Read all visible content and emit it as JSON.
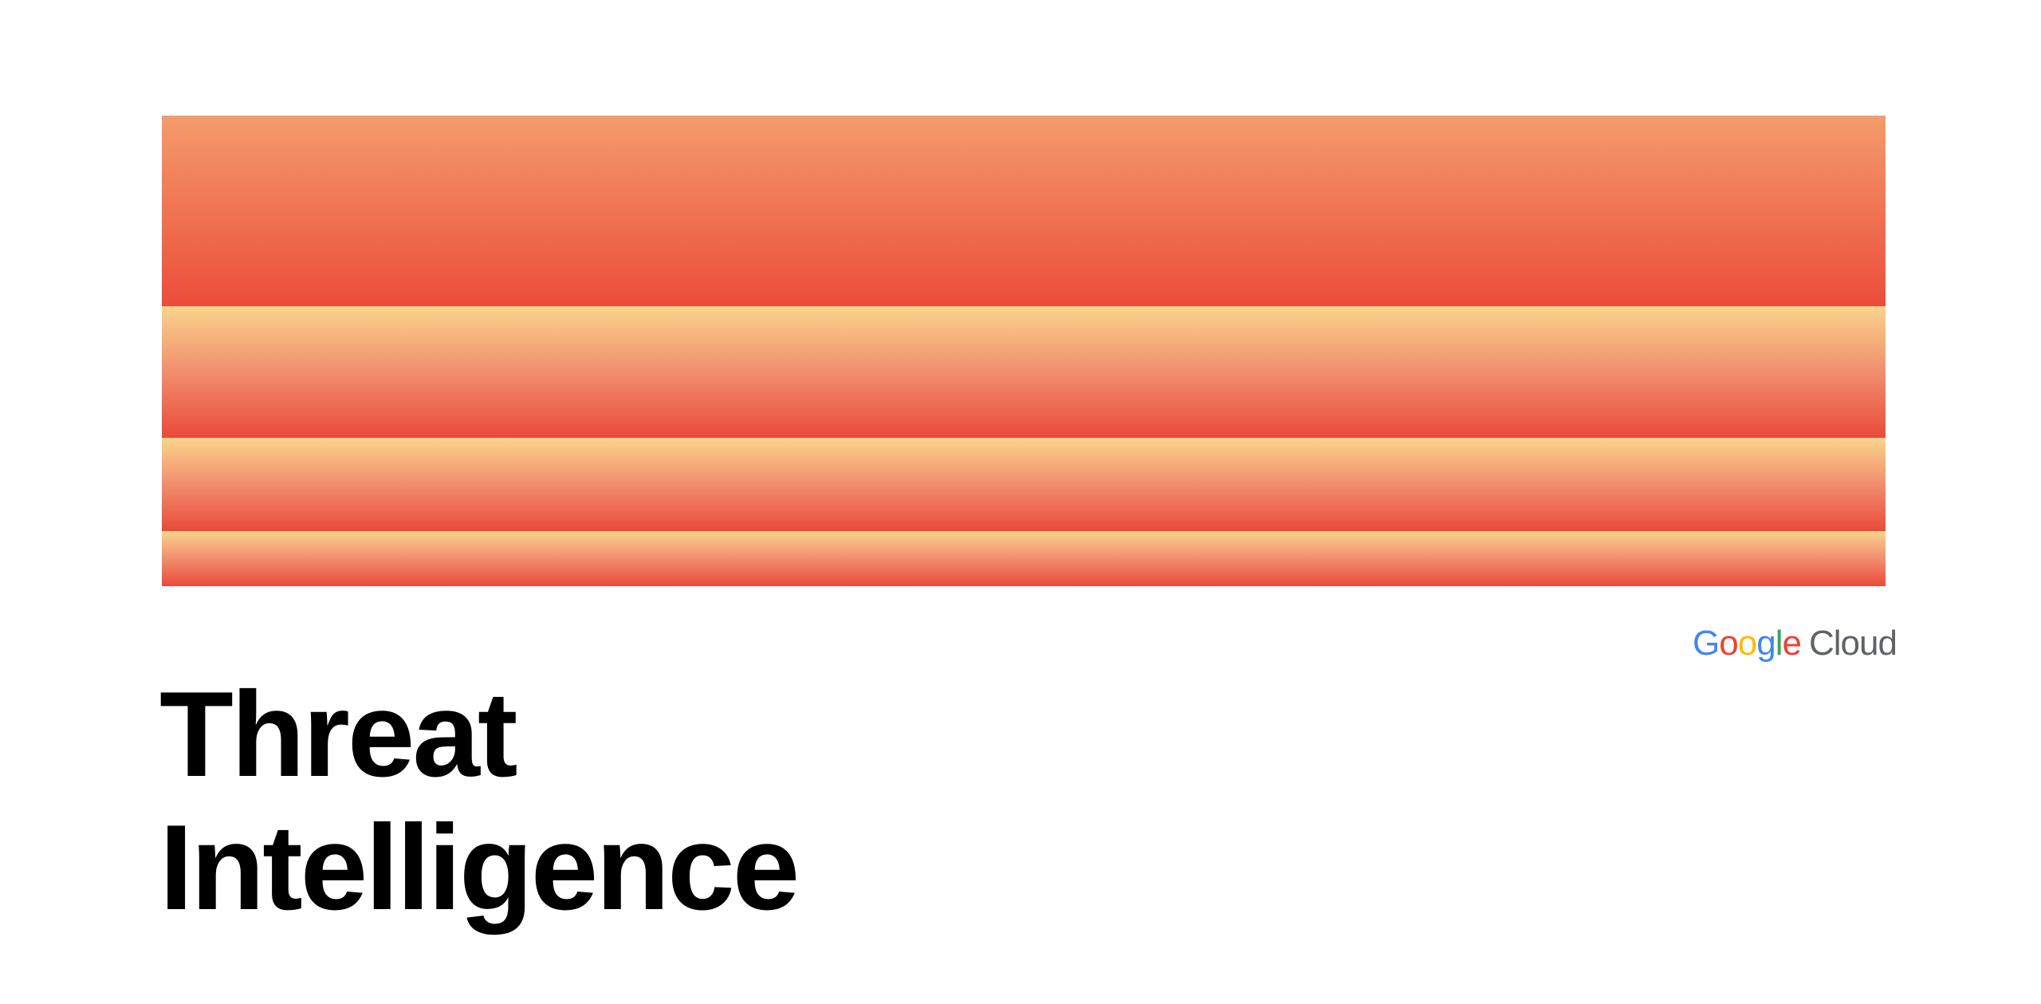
{
  "colors": {
    "band_top": "#f49c6c",
    "band_light": "#fad48c",
    "band_bottom": "#ea4a3a",
    "logo_blue": "#4285f4",
    "logo_red": "#ea4335",
    "logo_yellow": "#fbbc05",
    "logo_green": "#34a853",
    "logo_grey": "#5f6368"
  },
  "logo": {
    "google": "Google",
    "cloud": "Cloud"
  },
  "title": {
    "line1": "Threat",
    "line2": "Intelligence"
  }
}
